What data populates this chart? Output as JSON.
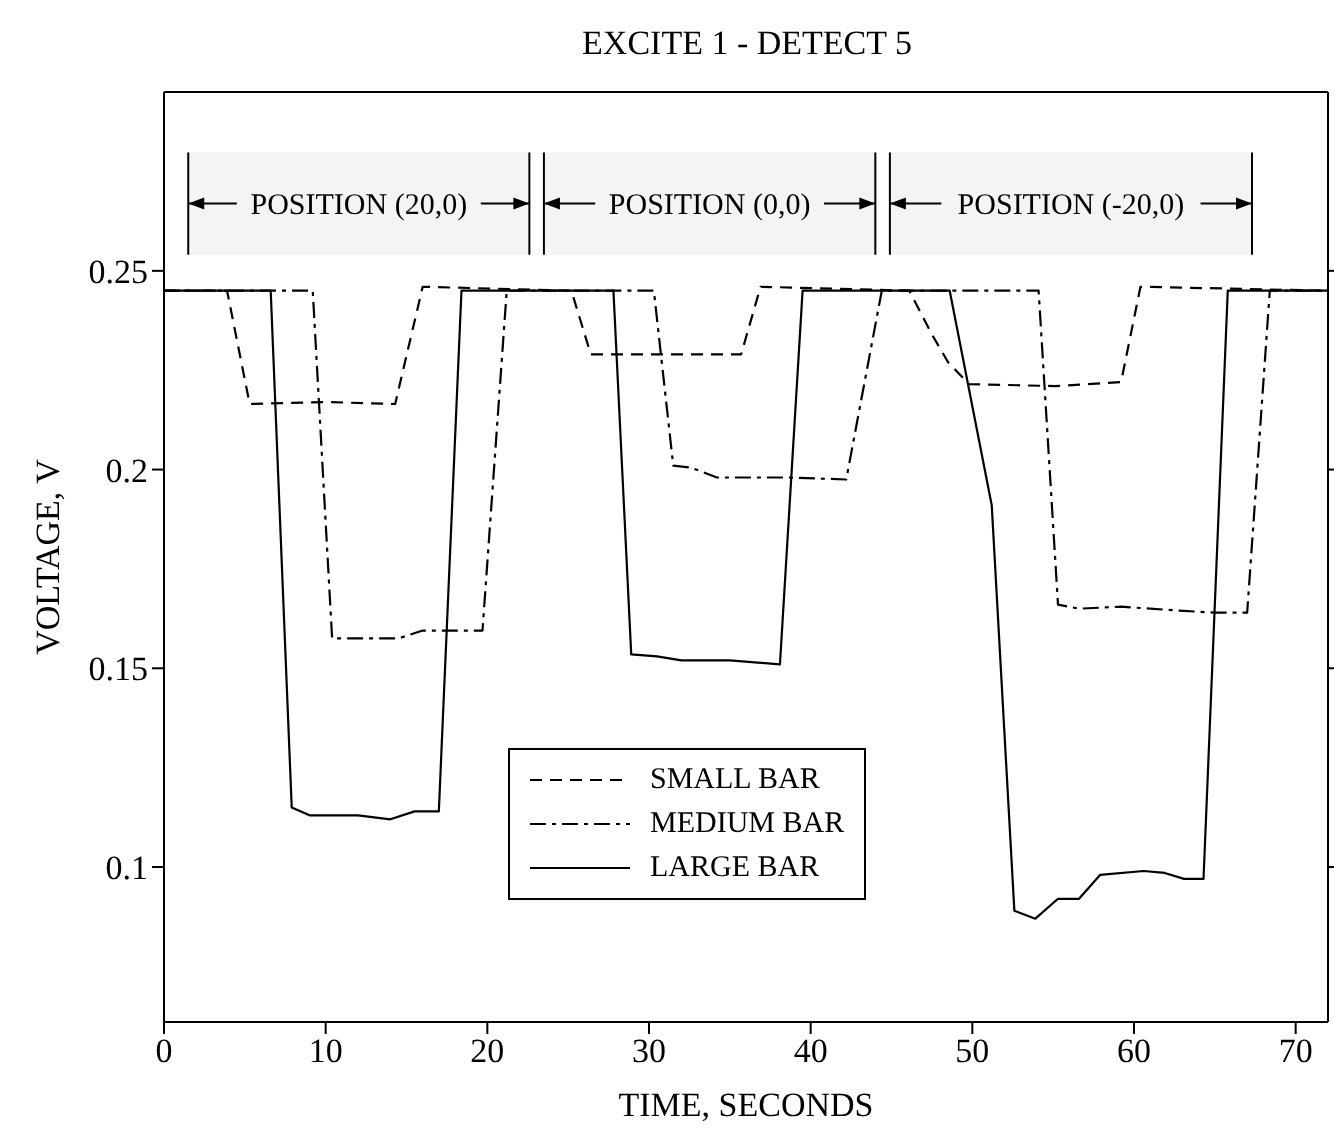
{
  "chart_data": {
    "type": "line",
    "title": "EXCITE 1 - DETECT 5",
    "xlabel": "TIME, SECONDS",
    "ylabel": "VOLTAGE, V",
    "xlim": [
      0,
      72
    ],
    "xticks": [
      0,
      10,
      20,
      30,
      40,
      50,
      60,
      70
    ],
    "ylim": [
      0.061,
      0.295
    ],
    "yticks": [
      0.1,
      0.15,
      0.2,
      0.25
    ],
    "grid": false,
    "legend": "bottom",
    "marker": "none",
    "bands": [
      {
        "axis": "x",
        "from": 1.5,
        "to": 22.6,
        "label": "POSITION (20,0)",
        "color": "#f4f4f4"
      },
      {
        "axis": "x",
        "from": 23.5,
        "to": 44,
        "label": "POSITION (0,0)",
        "color": "#f4f4f4"
      },
      {
        "axis": "x",
        "from": 44.9,
        "to": 67.3,
        "label": "POSITION (-20,0)",
        "color": "#f4f4f4"
      }
    ],
    "series": [
      {
        "name": "SMALL BAR",
        "color": "#000000",
        "line_style": "dashed",
        "x": [
          0,
          3.9,
          5.3,
          10,
          14.3,
          16,
          25.2,
          26.4,
          30,
          35.7,
          36.9,
          46.1,
          47.5,
          48.5,
          49.8,
          55.1,
          59.2,
          60.4,
          72
        ],
        "values": [
          0.245,
          0.245,
          0.2165,
          0.217,
          0.2165,
          0.246,
          0.245,
          0.229,
          0.229,
          0.229,
          0.246,
          0.245,
          0.234,
          0.227,
          0.2215,
          0.221,
          0.222,
          0.246,
          0.245
        ]
      },
      {
        "name": "MEDIUM BAR",
        "color": "#000000",
        "line_style": "dotted",
        "x": [
          0,
          9.2,
          10.4,
          12,
          14.5,
          16,
          19.7,
          21.2,
          30.3,
          31.5,
          32.6,
          34.2,
          38.7,
          42.2,
          44.4,
          54.1,
          55.3,
          56.6,
          59.2,
          62.8,
          65,
          67,
          68.4,
          72
        ],
        "values": [
          0.245,
          0.245,
          0.1575,
          0.1575,
          0.1575,
          0.1595,
          0.1595,
          0.245,
          0.245,
          0.201,
          0.2005,
          0.198,
          0.198,
          0.1975,
          0.245,
          0.245,
          0.166,
          0.165,
          0.1655,
          0.1645,
          0.164,
          0.164,
          0.245,
          0.245
        ]
      },
      {
        "name": "LARGE BAR",
        "color": "#000000",
        "line_style": "solid",
        "x": [
          0,
          6.6,
          7.9,
          9,
          12,
          14,
          15.5,
          17,
          18.4,
          27.8,
          28.9,
          30.5,
          32,
          35,
          38.1,
          39.5,
          48.6,
          51.2,
          52.6,
          53.9,
          55.3,
          56.6,
          57.9,
          60.6,
          61.9,
          63.1,
          64.3,
          65.8,
          72
        ],
        "values": [
          0.245,
          0.245,
          0.115,
          0.113,
          0.113,
          0.112,
          0.114,
          0.114,
          0.245,
          0.245,
          0.1535,
          0.153,
          0.152,
          0.152,
          0.151,
          0.245,
          0.245,
          0.191,
          0.089,
          0.087,
          0.092,
          0.092,
          0.098,
          0.099,
          0.0985,
          0.097,
          0.097,
          0.245,
          0.245
        ]
      }
    ]
  }
}
